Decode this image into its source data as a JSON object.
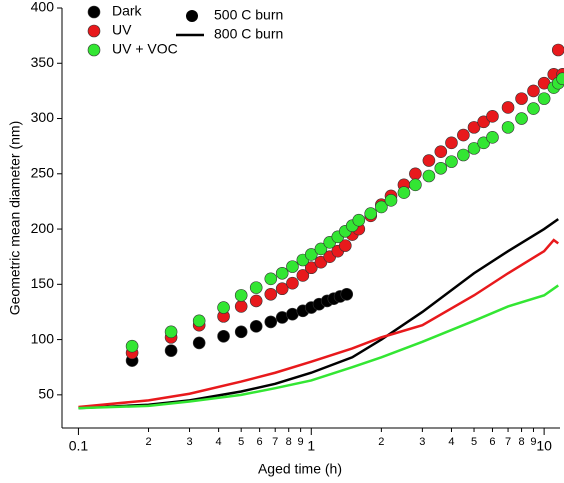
{
  "chart_data": {
    "type": "scatter",
    "xlabel": "Aged time (h)",
    "ylabel": "Geometric mean diameter (nm)",
    "xscale": "log",
    "xlim": [
      0.085,
      11.7
    ],
    "ylim": [
      20,
      400
    ],
    "xticks": [
      {
        "value": 0.1,
        "label": "0.1"
      },
      {
        "value": 0.2,
        "label": "2"
      },
      {
        "value": 0.3,
        "label": "3"
      },
      {
        "value": 0.4,
        "label": "4"
      },
      {
        "value": 0.5,
        "label": "5"
      },
      {
        "value": 0.6,
        "label": "6"
      },
      {
        "value": 0.7,
        "label": "7"
      },
      {
        "value": 0.8,
        "label": "8"
      },
      {
        "value": 0.9,
        "label": "9"
      },
      1,
      2,
      3,
      4,
      5,
      6,
      7,
      8,
      9,
      10
    ],
    "yticks": [
      50,
      100,
      150,
      200,
      250,
      300,
      350,
      400
    ],
    "legend_extra": [
      {
        "label": "500 C burn",
        "marker": "circle",
        "color": "#000000"
      },
      {
        "label": "800 C burn",
        "marker": "line",
        "color": "#000000"
      }
    ],
    "series": [
      {
        "name": "Dark",
        "type": "scatter",
        "color": "#000000",
        "x": [
          0.17,
          0.25,
          0.33,
          0.42,
          0.5,
          0.58,
          0.67,
          0.75,
          0.83,
          0.92,
          1.0,
          1.08,
          1.17,
          1.25,
          1.33,
          1.42
        ],
        "values": [
          81,
          90,
          97,
          103,
          107,
          112,
          116,
          120,
          123,
          126,
          129,
          132,
          135,
          137,
          139,
          141
        ]
      },
      {
        "name": "UV",
        "type": "scatter",
        "color": "#e8191c",
        "x": [
          0.17,
          0.25,
          0.33,
          0.42,
          0.5,
          0.58,
          0.67,
          0.75,
          0.83,
          0.92,
          1.0,
          1.1,
          1.2,
          1.3,
          1.4,
          1.5,
          1.6,
          1.8,
          2.0,
          2.2,
          2.5,
          2.8,
          3.2,
          3.6,
          4,
          4.5,
          5,
          5.5,
          6,
          7,
          8,
          9,
          10,
          11,
          11.5,
          12
        ],
        "values": [
          88,
          102,
          113,
          121,
          130,
          135,
          141,
          146,
          151,
          158,
          165,
          170,
          175,
          180,
          185,
          195,
          200,
          212,
          222,
          230,
          240,
          250,
          262,
          270,
          278,
          285,
          292,
          297,
          302,
          310,
          318,
          325,
          332,
          340,
          362,
          340
        ]
      },
      {
        "name": "UV + VOC",
        "type": "scatter",
        "color": "#33e633",
        "x": [
          0.17,
          0.25,
          0.33,
          0.42,
          0.5,
          0.58,
          0.67,
          0.75,
          0.83,
          0.92,
          1.0,
          1.1,
          1.2,
          1.3,
          1.4,
          1.5,
          1.6,
          1.8,
          2.0,
          2.2,
          2.5,
          2.8,
          3.2,
          3.6,
          4,
          4.5,
          5,
          5.5,
          6,
          7,
          8,
          9,
          10,
          11,
          11.5,
          12
        ],
        "values": [
          94,
          107,
          117,
          129,
          140,
          147,
          155,
          160,
          166,
          172,
          177,
          182,
          188,
          193,
          198,
          203,
          208,
          214,
          220,
          226,
          233,
          240,
          248,
          255,
          261,
          267,
          273,
          278,
          283,
          292,
          300,
          309,
          318,
          328,
          332,
          336
        ]
      },
      {
        "type": "line",
        "color": "#000000",
        "x": [
          0.1,
          0.2,
          0.3,
          0.5,
          0.7,
          1,
          1.5,
          2,
          3,
          5,
          7,
          10,
          11.5
        ],
        "values": [
          38,
          41,
          45,
          53,
          60,
          70,
          84,
          100,
          125,
          160,
          180,
          200,
          209
        ]
      },
      {
        "type": "line",
        "color": "#e8191c",
        "x": [
          0.1,
          0.2,
          0.3,
          0.5,
          0.7,
          1,
          1.5,
          2,
          3,
          5,
          7,
          10,
          11,
          11.5
        ],
        "values": [
          39,
          45,
          51,
          62,
          70,
          80,
          92,
          102,
          113,
          140,
          160,
          180,
          190,
          187
        ]
      },
      {
        "type": "line",
        "color": "#33e633",
        "x": [
          0.1,
          0.2,
          0.3,
          0.5,
          0.7,
          1,
          1.5,
          2,
          3,
          5,
          7,
          10,
          11.5
        ],
        "values": [
          38,
          40,
          44,
          50,
          56,
          63,
          75,
          84,
          98,
          117,
          130,
          140,
          149
        ]
      }
    ]
  }
}
